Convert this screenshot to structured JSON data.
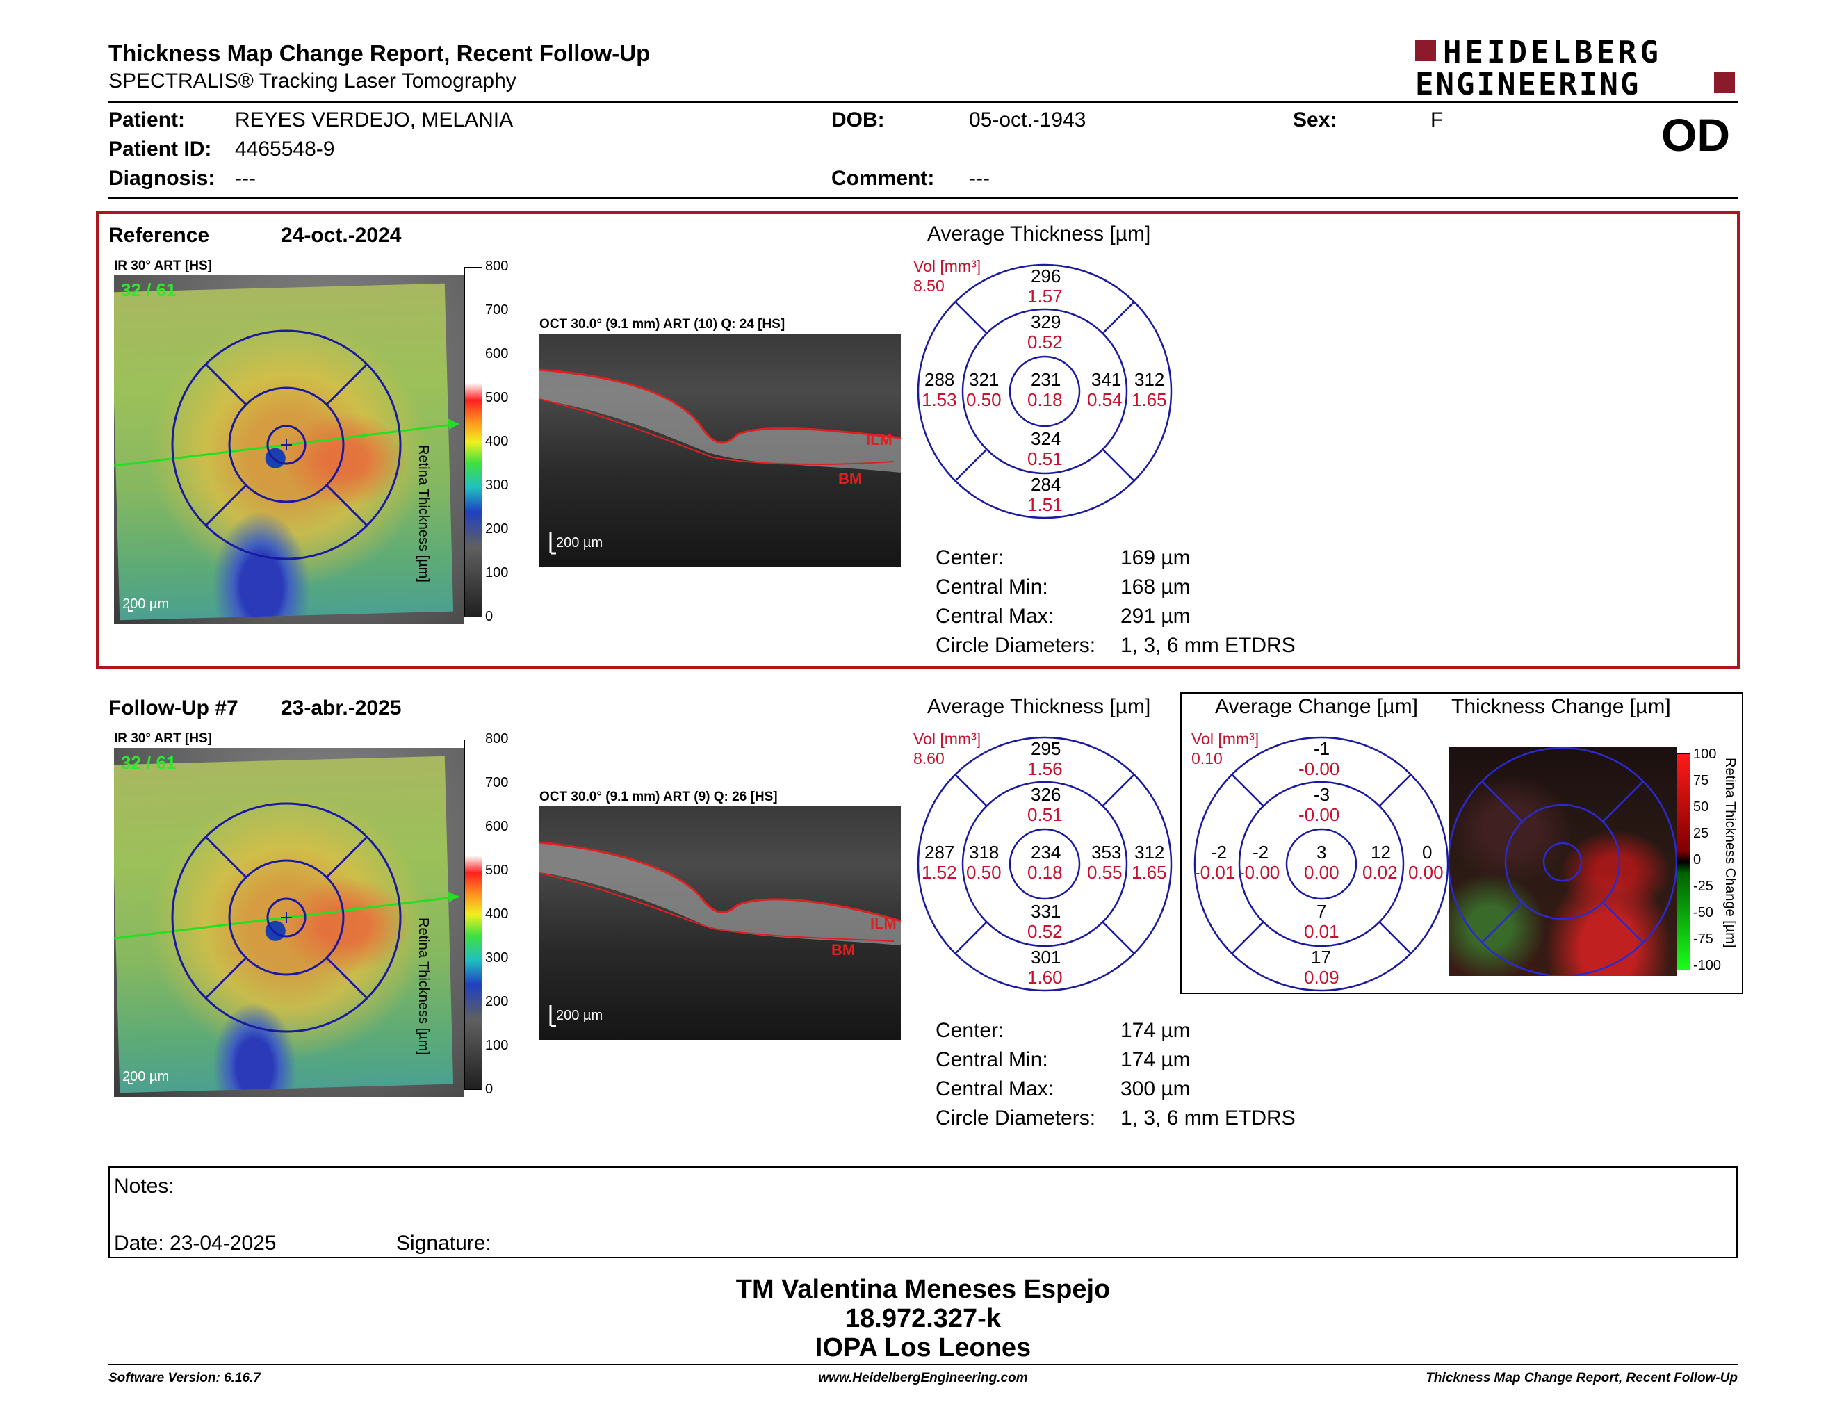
{
  "header": {
    "title": "Thickness Map Change Report, Recent Follow-Up",
    "subtitle": "SPECTRALIS® Tracking Laser Tomography",
    "logo_line1": "HEIDELBERG",
    "logo_line2": "ENGINEERING",
    "eye": "OD"
  },
  "patient": {
    "patient_label": "Patient:",
    "patient_value": "REYES VERDEJO, MELANIA",
    "dob_label": "DOB:",
    "dob_value": "05-oct.-1943",
    "sex_label": "Sex:",
    "sex_value": "F",
    "id_label": "Patient ID:",
    "id_value": "4465548-9",
    "diag_label": "Diagnosis:",
    "diag_value": "---",
    "comment_label": "Comment:",
    "comment_value": "---"
  },
  "reference": {
    "label": "Reference",
    "date": "24-oct.-2024",
    "ir_label": "IR 30° ART [HS]",
    "count": "32 / 61",
    "scalebar": "200 µm",
    "oct_label": "OCT 30.0° (9.1 mm) ART (10) Q: 24 [HS]",
    "oct_scalebar": "200 µm",
    "ilm": "ILM",
    "bm": "BM",
    "avg_title": "Average Thickness [µm]",
    "vol_label": "Vol [mm³]",
    "vol_value": "8.50",
    "grid": {
      "outer_top": "296",
      "outer_top_v": "1.57",
      "inner_top": "329",
      "inner_top_v": "0.52",
      "outer_left": "288",
      "outer_left_v": "1.53",
      "inner_left": "321",
      "inner_left_v": "0.50",
      "center": "231",
      "center_v": "0.18",
      "inner_right": "341",
      "inner_right_v": "0.54",
      "outer_right": "312",
      "outer_right_v": "1.65",
      "inner_bottom": "324",
      "inner_bottom_v": "0.51",
      "outer_bottom": "284",
      "outer_bottom_v": "1.51"
    },
    "stats": {
      "center_label": "Center:",
      "center_value": "169 µm",
      "min_label": "Central Min:",
      "min_value": "168 µm",
      "max_label": "Central Max:",
      "max_value": "291 µm",
      "diam_label": "Circle Diameters:",
      "diam_value": "1, 3, 6 mm ETDRS"
    }
  },
  "followup": {
    "label": "Follow-Up #7",
    "date": "23-abr.-2025",
    "ir_label": "IR 30° ART [HS]",
    "count": "32 / 61",
    "scalebar": "200 µm",
    "oct_label": "OCT 30.0° (9.1 mm) ART (9) Q: 26 [HS]",
    "oct_scalebar": "200 µm",
    "ilm": "ILM",
    "bm": "BM",
    "avg_title": "Average Thickness [µm]",
    "vol_label": "Vol [mm³]",
    "vol_value": "8.60",
    "grid": {
      "outer_top": "295",
      "outer_top_v": "1.56",
      "inner_top": "326",
      "inner_top_v": "0.51",
      "outer_left": "287",
      "outer_left_v": "1.52",
      "inner_left": "318",
      "inner_left_v": "0.50",
      "center": "234",
      "center_v": "0.18",
      "inner_right": "353",
      "inner_right_v": "0.55",
      "outer_right": "312",
      "outer_right_v": "1.65",
      "inner_bottom": "331",
      "inner_bottom_v": "0.52",
      "outer_bottom": "301",
      "outer_bottom_v": "1.60"
    },
    "stats": {
      "center_label": "Center:",
      "center_value": "174 µm",
      "min_label": "Central Min:",
      "min_value": "174 µm",
      "max_label": "Central Max:",
      "max_value": "300 µm",
      "diam_label": "Circle Diameters:",
      "diam_value": "1, 3, 6 mm ETDRS"
    },
    "change_title": "Average Change [µm]",
    "change_vol_label": "Vol [mm³]",
    "change_vol_value": "0.10",
    "change_grid": {
      "outer_top": "-1",
      "outer_top_v": "-0.00",
      "inner_top": "-3",
      "inner_top_v": "-0.00",
      "outer_left": "-2",
      "outer_left_v": "-0.01",
      "inner_left": "-2",
      "inner_left_v": "-0.00",
      "center": "3",
      "center_v": "0.00",
      "inner_right": "12",
      "inner_right_v": "0.02",
      "outer_right": "0",
      "outer_right_v": "0.00",
      "inner_bottom": "7",
      "inner_bottom_v": "0.01",
      "outer_bottom": "17",
      "outer_bottom_v": "0.09"
    },
    "thickness_change_title": "Thickness Change [µm]",
    "change_axis_label": "Retina Thickness Change [µm]",
    "change_ticks": [
      "100",
      "75",
      "50",
      "25",
      "0",
      "-25",
      "-50",
      "-75",
      "-100"
    ]
  },
  "thickness_scale": {
    "axis_label": "Retina Thickness [µm]",
    "ticks": [
      "800",
      "700",
      "600",
      "500",
      "400",
      "300",
      "200",
      "100",
      "0"
    ]
  },
  "notes": {
    "label": "Notes:",
    "date_label": "Date: 23-04-2025",
    "signature_label": "Signature:"
  },
  "signer": {
    "name": "TM Valentina Meneses Espejo",
    "id": "18.972.327-k",
    "org": "IOPA Los Leones"
  },
  "footer": {
    "version": "Software Version: 6.16.7",
    "url": "www.HeidelbergEngineering.com",
    "report": "Thickness Map Change Report, Recent Follow-Up"
  },
  "colors": {
    "accent_red": "#c8102e",
    "grid_blue": "#1a1aa0",
    "frame_red": "#b0141c"
  }
}
